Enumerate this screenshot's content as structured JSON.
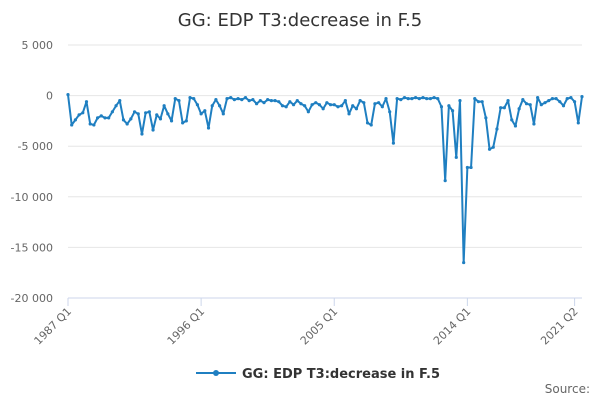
{
  "chart_data": {
    "type": "line",
    "title": "GG: EDP T3:decrease in F.5",
    "source_label": "Source:",
    "xlabel": "",
    "ylabel": "",
    "ylim": [
      -20000,
      5000
    ],
    "y_ticks": [
      5000,
      0,
      -5000,
      -10000,
      -15000,
      -20000
    ],
    "y_tick_labels": [
      "5 000",
      "0",
      "-5 000",
      "-10 000",
      "-15 000",
      "-20 000"
    ],
    "x_tick_labels": [
      "1987 Q1",
      "1996 Q1",
      "2005 Q1",
      "2014 Q1",
      "2021 Q2"
    ],
    "x_tick_index": [
      0,
      36,
      72,
      108,
      137
    ],
    "grid": true,
    "legend_position": "bottom",
    "color": "#1f7fc1",
    "series": [
      {
        "name": "GG: EDP T3:decrease in F.5",
        "values": [
          100,
          -2900,
          -2400,
          -1900,
          -1700,
          -600,
          -2800,
          -2900,
          -2200,
          -2000,
          -2200,
          -2200,
          -1600,
          -1000,
          -500,
          -2400,
          -2800,
          -2300,
          -1600,
          -1800,
          -3800,
          -1700,
          -1600,
          -3400,
          -1900,
          -2300,
          -1000,
          -1800,
          -2500,
          -300,
          -500,
          -2700,
          -2500,
          -200,
          -300,
          -900,
          -1800,
          -1500,
          -3200,
          -1000,
          -400,
          -1000,
          -1800,
          -300,
          -200,
          -400,
          -300,
          -400,
          -200,
          -500,
          -400,
          -800,
          -500,
          -700,
          -400,
          -500,
          -500,
          -600,
          -1000,
          -1100,
          -600,
          -900,
          -500,
          -800,
          -1000,
          -1600,
          -900,
          -700,
          -900,
          -1300,
          -700,
          -900,
          -900,
          -1100,
          -1000,
          -500,
          -1800,
          -1000,
          -1300,
          -500,
          -700,
          -2700,
          -2900,
          -800,
          -700,
          -1100,
          -300,
          -1600,
          -4700,
          -300,
          -400,
          -200,
          -300,
          -300,
          -200,
          -300,
          -200,
          -300,
          -300,
          -200,
          -300,
          -1100,
          -8400,
          -1000,
          -1500,
          -6100,
          -500,
          -16500,
          -7100,
          -7100,
          -300,
          -600,
          -600,
          -2200,
          -5300,
          -5100,
          -3300,
          -1200,
          -1200,
          -500,
          -2400,
          -3000,
          -1300,
          -400,
          -800,
          -900,
          -2800,
          -200,
          -900,
          -700,
          -500,
          -300,
          -300,
          -600,
          -1000,
          -300,
          -200,
          -600,
          -2700,
          -100
        ]
      }
    ]
  }
}
